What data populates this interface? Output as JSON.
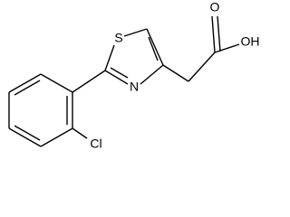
{
  "atoms": [
    {
      "label": "S"
    },
    {
      "label": "N"
    },
    {
      "label": "O"
    },
    {
      "label": "OH"
    },
    {
      "label": "Cl"
    }
  ]
}
